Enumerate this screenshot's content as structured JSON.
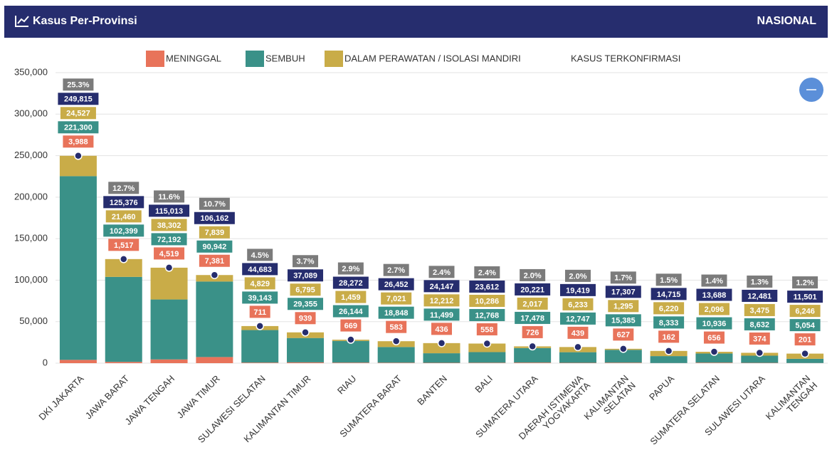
{
  "chart_data": {
    "type": "stacked_bar",
    "title": "Kasus Per-Provinsi",
    "header_right": "NASIONAL",
    "categories": [
      "DKI JAKARTA",
      "JAWA BARAT",
      "JAWA TENGAH",
      "JAWA TIMUR",
      "SULAWESI SELATAN",
      "KALIMANTAN TIMUR",
      "RIAU",
      "SUMATERA BARAT",
      "BANTEN",
      "BALI",
      "SUMATERA UTARA",
      "DAERAH ISTIMEWA\nYOGYAKARTA",
      "KALIMANTAN\nSELATAN",
      "PAPUA",
      "SUMATERA SELATAN",
      "SULAWESI UTARA",
      "KALIMANTAN\nTENGAH"
    ],
    "series": [
      {
        "name": "MENINGGAL",
        "color": "#e8735a",
        "values": [
          3988,
          1517,
          4519,
          7381,
          711,
          939,
          669,
          583,
          436,
          558,
          726,
          439,
          627,
          162,
          656,
          374,
          201
        ],
        "value_labels": [
          "3,988",
          "1,517",
          "4,519",
          "7,381",
          "711",
          "939",
          "669",
          "583",
          "436",
          "558",
          "726",
          "439",
          "627",
          "162",
          "656",
          "374",
          "201"
        ]
      },
      {
        "name": "SEMBUH",
        "color": "#3a9188",
        "values": [
          221300,
          102399,
          72192,
          90942,
          39143,
          29355,
          26144,
          18848,
          11499,
          12768,
          17478,
          12747,
          15385,
          8333,
          10936,
          8632,
          5054
        ],
        "value_labels": [
          "221,300",
          "102,399",
          "72,192",
          "90,942",
          "39,143",
          "29,355",
          "26,144",
          "18,848",
          "11,499",
          "12,768",
          "17,478",
          "12,747",
          "15,385",
          "8,333",
          "10,936",
          "8,632",
          "5,054"
        ]
      },
      {
        "name": "DALAM PERAWATAN / ISOLASI MANDIRI",
        "color": "#c9ac48",
        "values": [
          24527,
          21460,
          38302,
          7839,
          4829,
          6795,
          1459,
          7021,
          12212,
          10286,
          2017,
          6233,
          1295,
          6220,
          2096,
          3475,
          6246
        ],
        "value_labels": [
          "24,527",
          "21,460",
          "38,302",
          "7,839",
          "4,829",
          "6,795",
          "1,459",
          "7,021",
          "12,212",
          "10,286",
          "2,017",
          "6,233",
          "1,295",
          "6,220",
          "2,096",
          "3,475",
          "6,246"
        ]
      }
    ],
    "total": {
      "name": "KASUS TERKONFIRMASI",
      "color": "#262d6e",
      "values": [
        249815,
        125376,
        115013,
        106162,
        44683,
        37089,
        28272,
        26452,
        24147,
        23612,
        20221,
        19419,
        17307,
        14715,
        13688,
        12481,
        11501
      ],
      "value_labels": [
        "249,815",
        "125,376",
        "115,013",
        "106,162",
        "44,683",
        "37,089",
        "28,272",
        "26,452",
        "24,147",
        "23,612",
        "20,221",
        "19,419",
        "17,307",
        "14,715",
        "13,688",
        "12,481",
        "11,501"
      ]
    },
    "share": {
      "color": "#7b7b7b",
      "values": [
        25.3,
        12.7,
        11.6,
        10.7,
        4.5,
        3.7,
        2.9,
        2.7,
        2.4,
        2.4,
        2.0,
        2.0,
        1.7,
        1.5,
        1.4,
        1.3,
        1.2
      ],
      "value_labels": [
        "25.3%",
        "12.7%",
        "11.6%",
        "10.7%",
        "4.5%",
        "3.7%",
        "2.9%",
        "2.7%",
        "2.4%",
        "2.4%",
        "2.0%",
        "2.0%",
        "1.7%",
        "1.5%",
        "1.4%",
        "1.3%",
        "1.2%"
      ]
    },
    "ylim": [
      0,
      350000
    ],
    "yticks": [
      0,
      {
        "value": 50000,
        "label": "50,000"
      },
      {
        "value": 100000,
        "label": "100,000"
      },
      {
        "value": 150000,
        "label": "150,000"
      },
      {
        "value": 200000,
        "label": "200,000"
      },
      {
        "value": 250000,
        "label": "250,000"
      },
      {
        "value": 300000,
        "label": "300,000"
      },
      {
        "value": 350000,
        "label": "350,000"
      }
    ],
    "grid": true
  }
}
